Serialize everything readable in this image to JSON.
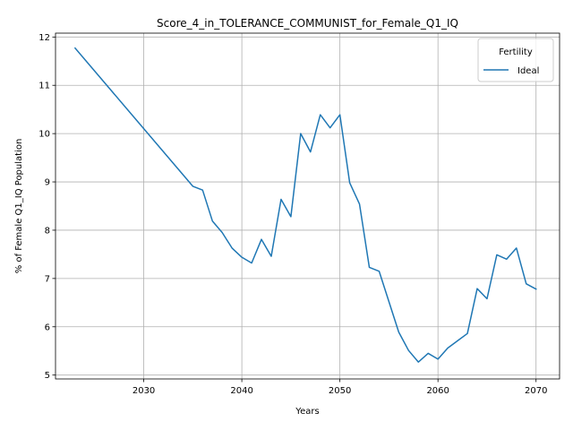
{
  "chart_data": {
    "type": "line",
    "title": "Score_4_in_TOLERANCE_COMMUNIST_for_Female_Q1_IQ",
    "xlabel": "Years",
    "ylabel": "% of Female Q1_IQ Population",
    "xlim": [
      2021,
      2072.4
    ],
    "ylim": [
      4.92,
      12.08
    ],
    "x_ticks": [
      2030,
      2040,
      2050,
      2060,
      2070
    ],
    "y_ticks": [
      5,
      6,
      7,
      8,
      9,
      10,
      11,
      12
    ],
    "grid": true,
    "legend": {
      "title": "Fertility",
      "placement": "top-right"
    },
    "series": [
      {
        "name": "Ideal",
        "color": "#1f77b4",
        "x": [
          2023,
          2035,
          2036,
          2037,
          2038,
          2039,
          2040,
          2041,
          2042,
          2043,
          2044,
          2045,
          2046,
          2047,
          2048,
          2049,
          2050,
          2051,
          2052,
          2053,
          2054,
          2055,
          2056,
          2057,
          2058,
          2059,
          2060,
          2061,
          2062,
          2063,
          2064,
          2065,
          2066,
          2067,
          2068,
          2069,
          2070
        ],
        "y": [
          11.77,
          8.91,
          8.83,
          8.19,
          7.95,
          7.63,
          7.44,
          7.32,
          7.81,
          7.46,
          8.64,
          8.28,
          10.0,
          9.62,
          10.39,
          10.12,
          10.39,
          8.98,
          8.54,
          7.23,
          7.15,
          6.52,
          5.89,
          5.51,
          5.27,
          5.45,
          5.33,
          5.56,
          5.71,
          5.86,
          6.79,
          6.58,
          7.49,
          7.4,
          7.63,
          6.89,
          6.78
        ]
      }
    ]
  }
}
